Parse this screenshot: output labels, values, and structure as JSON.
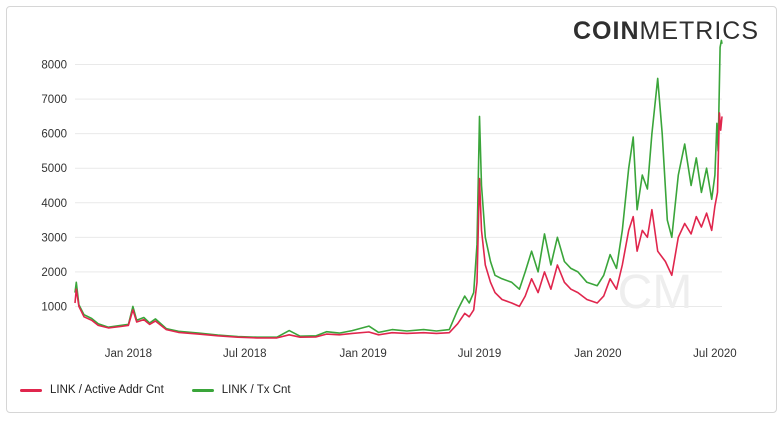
{
  "brand": {
    "bold": "COIN",
    "light": "METRICS"
  },
  "watermark": "CM",
  "colors": {
    "active": "#e0264d",
    "tx": "#3aa53a",
    "grid": "#e9e9e9"
  },
  "chart_data": {
    "type": "line",
    "title": "",
    "xlabel": "",
    "ylabel": "",
    "x_ticks": [
      "Jan 2018",
      "Jul 2018",
      "Jan 2019",
      "Jul 2019",
      "Jan 2020",
      "Jul 2020"
    ],
    "y_ticks": [
      "1000",
      "2000",
      "3000",
      "4000",
      "5000",
      "6000",
      "7000",
      "8000"
    ],
    "xlim": [
      "2017-10-10",
      "2020-07-12"
    ],
    "ylim": [
      0,
      9000
    ],
    "grid": true,
    "legend": "bottom-left",
    "series": [
      {
        "name": "LINK / Active Addr Cnt",
        "color": "#e0264d",
        "points": [
          [
            "2017-10-10",
            1100
          ],
          [
            "2017-10-12",
            1500
          ],
          [
            "2017-10-16",
            1000
          ],
          [
            "2017-10-24",
            700
          ],
          [
            "2017-11-05",
            600
          ],
          [
            "2017-11-15",
            450
          ],
          [
            "2017-12-01",
            380
          ],
          [
            "2017-12-20",
            420
          ],
          [
            "2018-01-01",
            450
          ],
          [
            "2018-01-08",
            900
          ],
          [
            "2018-01-14",
            550
          ],
          [
            "2018-01-25",
            620
          ],
          [
            "2018-02-03",
            480
          ],
          [
            "2018-02-12",
            580
          ],
          [
            "2018-03-01",
            330
          ],
          [
            "2018-03-20",
            250
          ],
          [
            "2018-04-20",
            200
          ],
          [
            "2018-05-20",
            150
          ],
          [
            "2018-06-20",
            110
          ],
          [
            "2018-07-20",
            90
          ],
          [
            "2018-08-20",
            90
          ],
          [
            "2018-09-08",
            180
          ],
          [
            "2018-09-25",
            110
          ],
          [
            "2018-10-20",
            120
          ],
          [
            "2018-11-05",
            200
          ],
          [
            "2018-11-25",
            180
          ],
          [
            "2018-12-15",
            220
          ],
          [
            "2019-01-10",
            260
          ],
          [
            "2019-01-25",
            180
          ],
          [
            "2019-02-15",
            240
          ],
          [
            "2019-03-10",
            220
          ],
          [
            "2019-04-05",
            240
          ],
          [
            "2019-04-25",
            220
          ],
          [
            "2019-05-15",
            240
          ],
          [
            "2019-05-28",
            500
          ],
          [
            "2019-06-08",
            800
          ],
          [
            "2019-06-15",
            700
          ],
          [
            "2019-06-22",
            900
          ],
          [
            "2019-06-27",
            1700
          ],
          [
            "2019-07-01",
            4700
          ],
          [
            "2019-07-04",
            3200
          ],
          [
            "2019-07-10",
            2200
          ],
          [
            "2019-07-18",
            1700
          ],
          [
            "2019-07-25",
            1400
          ],
          [
            "2019-08-05",
            1200
          ],
          [
            "2019-08-20",
            1100
          ],
          [
            "2019-09-01",
            1000
          ],
          [
            "2019-09-10",
            1300
          ],
          [
            "2019-09-20",
            1800
          ],
          [
            "2019-09-30",
            1400
          ],
          [
            "2019-10-10",
            2000
          ],
          [
            "2019-10-20",
            1500
          ],
          [
            "2019-10-30",
            2200
          ],
          [
            "2019-11-10",
            1700
          ],
          [
            "2019-11-20",
            1500
          ],
          [
            "2019-12-01",
            1400
          ],
          [
            "2019-12-15",
            1200
          ],
          [
            "2019-12-31",
            1100
          ],
          [
            "2020-01-10",
            1300
          ],
          [
            "2020-01-20",
            1800
          ],
          [
            "2020-01-30",
            1500
          ],
          [
            "2020-02-08",
            2200
          ],
          [
            "2020-02-18",
            3200
          ],
          [
            "2020-02-25",
            3600
          ],
          [
            "2020-03-02",
            2600
          ],
          [
            "2020-03-10",
            3200
          ],
          [
            "2020-03-18",
            3000
          ],
          [
            "2020-03-25",
            3800
          ],
          [
            "2020-04-03",
            2600
          ],
          [
            "2020-04-15",
            2300
          ],
          [
            "2020-04-25",
            1900
          ],
          [
            "2020-05-05",
            3000
          ],
          [
            "2020-05-15",
            3400
          ],
          [
            "2020-05-25",
            3100
          ],
          [
            "2020-06-02",
            3600
          ],
          [
            "2020-06-10",
            3300
          ],
          [
            "2020-06-18",
            3700
          ],
          [
            "2020-06-26",
            3200
          ],
          [
            "2020-07-01",
            3900
          ],
          [
            "2020-07-05",
            4300
          ],
          [
            "2020-07-08",
            6600
          ],
          [
            "2020-07-10",
            6100
          ],
          [
            "2020-07-12",
            6500
          ]
        ]
      },
      {
        "name": "LINK / Tx Cnt",
        "color": "#3aa53a",
        "points": [
          [
            "2017-10-10",
            1400
          ],
          [
            "2017-10-12",
            1700
          ],
          [
            "2017-10-16",
            1050
          ],
          [
            "2017-10-24",
            760
          ],
          [
            "2017-11-05",
            650
          ],
          [
            "2017-11-15",
            500
          ],
          [
            "2017-12-01",
            400
          ],
          [
            "2017-12-20",
            450
          ],
          [
            "2018-01-01",
            480
          ],
          [
            "2018-01-08",
            1000
          ],
          [
            "2018-01-14",
            600
          ],
          [
            "2018-01-25",
            680
          ],
          [
            "2018-02-03",
            520
          ],
          [
            "2018-02-12",
            640
          ],
          [
            "2018-03-01",
            360
          ],
          [
            "2018-03-20",
            280
          ],
          [
            "2018-04-20",
            230
          ],
          [
            "2018-05-20",
            170
          ],
          [
            "2018-06-20",
            130
          ],
          [
            "2018-07-20",
            110
          ],
          [
            "2018-08-20",
            110
          ],
          [
            "2018-09-08",
            300
          ],
          [
            "2018-09-25",
            140
          ],
          [
            "2018-10-20",
            150
          ],
          [
            "2018-11-05",
            270
          ],
          [
            "2018-11-25",
            230
          ],
          [
            "2018-12-15",
            300
          ],
          [
            "2019-01-10",
            430
          ],
          [
            "2019-01-25",
            250
          ],
          [
            "2019-02-15",
            330
          ],
          [
            "2019-03-10",
            290
          ],
          [
            "2019-04-05",
            330
          ],
          [
            "2019-04-25",
            290
          ],
          [
            "2019-05-15",
            330
          ],
          [
            "2019-05-28",
            900
          ],
          [
            "2019-06-08",
            1300
          ],
          [
            "2019-06-15",
            1100
          ],
          [
            "2019-06-22",
            1400
          ],
          [
            "2019-06-27",
            2800
          ],
          [
            "2019-07-01",
            6500
          ],
          [
            "2019-07-04",
            4500
          ],
          [
            "2019-07-10",
            3000
          ],
          [
            "2019-07-18",
            2300
          ],
          [
            "2019-07-25",
            1900
          ],
          [
            "2019-08-05",
            1800
          ],
          [
            "2019-08-20",
            1700
          ],
          [
            "2019-09-01",
            1500
          ],
          [
            "2019-09-10",
            2000
          ],
          [
            "2019-09-20",
            2600
          ],
          [
            "2019-09-30",
            2000
          ],
          [
            "2019-10-10",
            3100
          ],
          [
            "2019-10-20",
            2200
          ],
          [
            "2019-10-30",
            3000
          ],
          [
            "2019-11-10",
            2300
          ],
          [
            "2019-11-20",
            2100
          ],
          [
            "2019-12-01",
            2000
          ],
          [
            "2019-12-15",
            1700
          ],
          [
            "2019-12-31",
            1600
          ],
          [
            "2020-01-10",
            1900
          ],
          [
            "2020-01-20",
            2500
          ],
          [
            "2020-01-30",
            2100
          ],
          [
            "2020-02-08",
            3200
          ],
          [
            "2020-02-18",
            5000
          ],
          [
            "2020-02-25",
            5900
          ],
          [
            "2020-03-02",
            3800
          ],
          [
            "2020-03-10",
            4800
          ],
          [
            "2020-03-18",
            4400
          ],
          [
            "2020-03-25",
            6000
          ],
          [
            "2020-04-03",
            7600
          ],
          [
            "2020-04-10",
            6000
          ],
          [
            "2020-04-18",
            3500
          ],
          [
            "2020-04-25",
            3000
          ],
          [
            "2020-05-05",
            4800
          ],
          [
            "2020-05-15",
            5700
          ],
          [
            "2020-05-25",
            4500
          ],
          [
            "2020-06-02",
            5300
          ],
          [
            "2020-06-10",
            4300
          ],
          [
            "2020-06-18",
            5000
          ],
          [
            "2020-06-26",
            4100
          ],
          [
            "2020-07-01",
            4800
          ],
          [
            "2020-07-04",
            6300
          ],
          [
            "2020-07-06",
            5500
          ],
          [
            "2020-07-09",
            8500
          ],
          [
            "2020-07-11",
            8700
          ],
          [
            "2020-07-12",
            8600
          ]
        ]
      }
    ]
  }
}
